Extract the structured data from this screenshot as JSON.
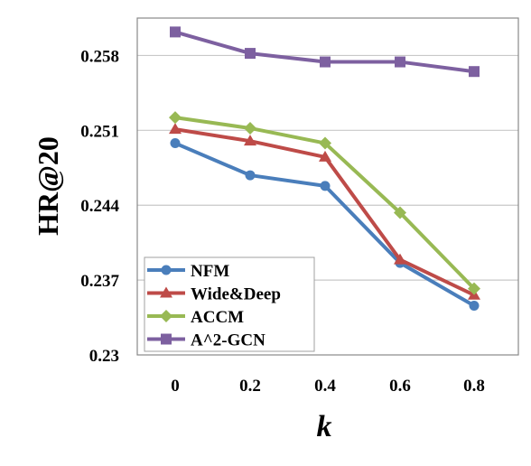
{
  "chart_data": {
    "type": "line",
    "title": "",
    "xlabel": "k",
    "ylabel": "HR@20",
    "x": [
      0,
      0.2,
      0.4,
      0.6,
      0.8
    ],
    "x_tick_labels": [
      "0",
      "0.2",
      "0.4",
      "0.6",
      "0.8"
    ],
    "y_tick_labels": [
      "0.23",
      "0.237",
      "0.244",
      "0.251",
      "0.258"
    ],
    "y_ticks": [
      0.23,
      0.237,
      0.244,
      0.251,
      0.258
    ],
    "ylim": [
      0.23,
      0.2615
    ],
    "grid": "horizontal",
    "legend_position": "bottom-left",
    "series": [
      {
        "name": "NFM",
        "marker": "circle",
        "color": "#4a7ebb",
        "values": [
          0.2498,
          0.2468,
          0.2458,
          0.2386,
          0.2346
        ]
      },
      {
        "name": "Wide&Deep",
        "marker": "triangle",
        "color": "#be4b48",
        "values": [
          0.2511,
          0.25,
          0.2485,
          0.2389,
          0.2356
        ]
      },
      {
        "name": "ACCM",
        "marker": "diamond",
        "color": "#98b954",
        "values": [
          0.2522,
          0.2512,
          0.2498,
          0.2433,
          0.2362
        ]
      },
      {
        "name": "A^2-GCN",
        "marker": "square",
        "color": "#7d60a0",
        "values": [
          0.2602,
          0.2582,
          0.2574,
          0.2574,
          0.2565
        ]
      }
    ]
  }
}
